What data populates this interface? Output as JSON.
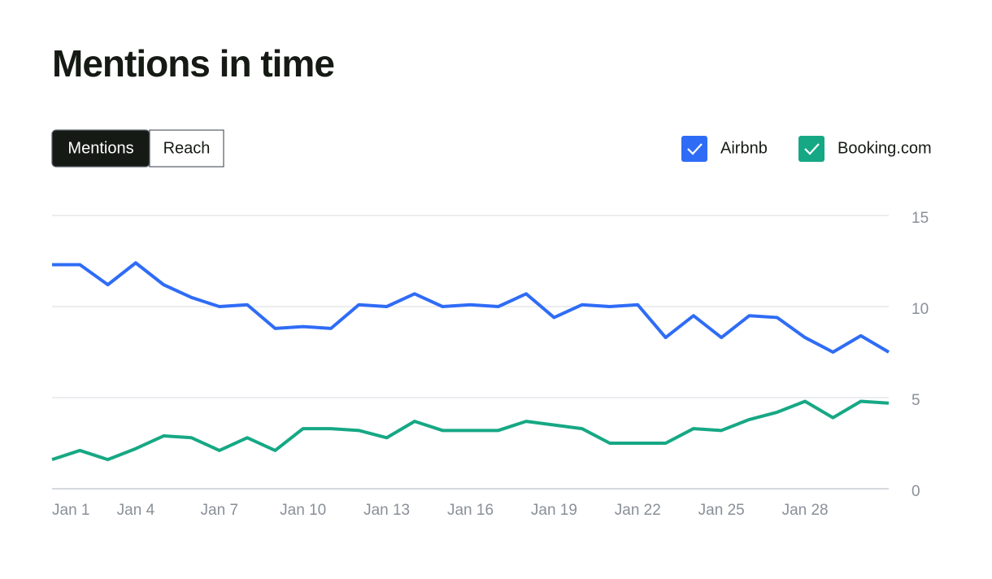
{
  "chart_data": {
    "type": "line",
    "title": "Mentions in time",
    "controls": [
      "Mentions",
      "Reach"
    ],
    "active_control": 0,
    "categories": [
      "Jan 1",
      null,
      null,
      "Jan 4",
      null,
      null,
      "Jan 7",
      null,
      null,
      "Jan 10",
      null,
      null,
      "Jan 13",
      null,
      null,
      "Jan 16",
      null,
      null,
      "Jan 19",
      null,
      null,
      "Jan 22",
      null,
      null,
      "Jan 25",
      null,
      null,
      "Jan 28",
      null,
      null,
      null
    ],
    "series": [
      {
        "name": "Airbnb",
        "color": "#2f6cf6",
        "values": [
          12.3,
          12.3,
          11.2,
          12.4,
          11.2,
          10.5,
          10.0,
          10.1,
          8.8,
          8.9,
          8.8,
          10.1,
          10.0,
          10.7,
          10.0,
          10.1,
          10.0,
          10.7,
          9.4,
          10.1,
          10.0,
          10.1,
          8.3,
          9.5,
          8.3,
          9.5,
          9.4,
          8.3,
          7.5,
          8.4,
          7.5
        ]
      },
      {
        "name": "Booking.com",
        "color": "#16a884",
        "values": [
          1.6,
          2.1,
          1.6,
          2.2,
          2.9,
          2.8,
          2.1,
          2.8,
          2.1,
          3.3,
          3.3,
          3.2,
          2.8,
          3.7,
          3.2,
          3.2,
          3.2,
          3.7,
          3.5,
          3.3,
          2.5,
          2.5,
          2.5,
          3.3,
          3.2,
          3.8,
          4.2,
          4.8,
          3.9,
          4.8,
          4.7
        ]
      }
    ],
    "ylim": [
      0,
      15
    ],
    "yticks": [
      0,
      5,
      10,
      15
    ],
    "grid": true
  }
}
